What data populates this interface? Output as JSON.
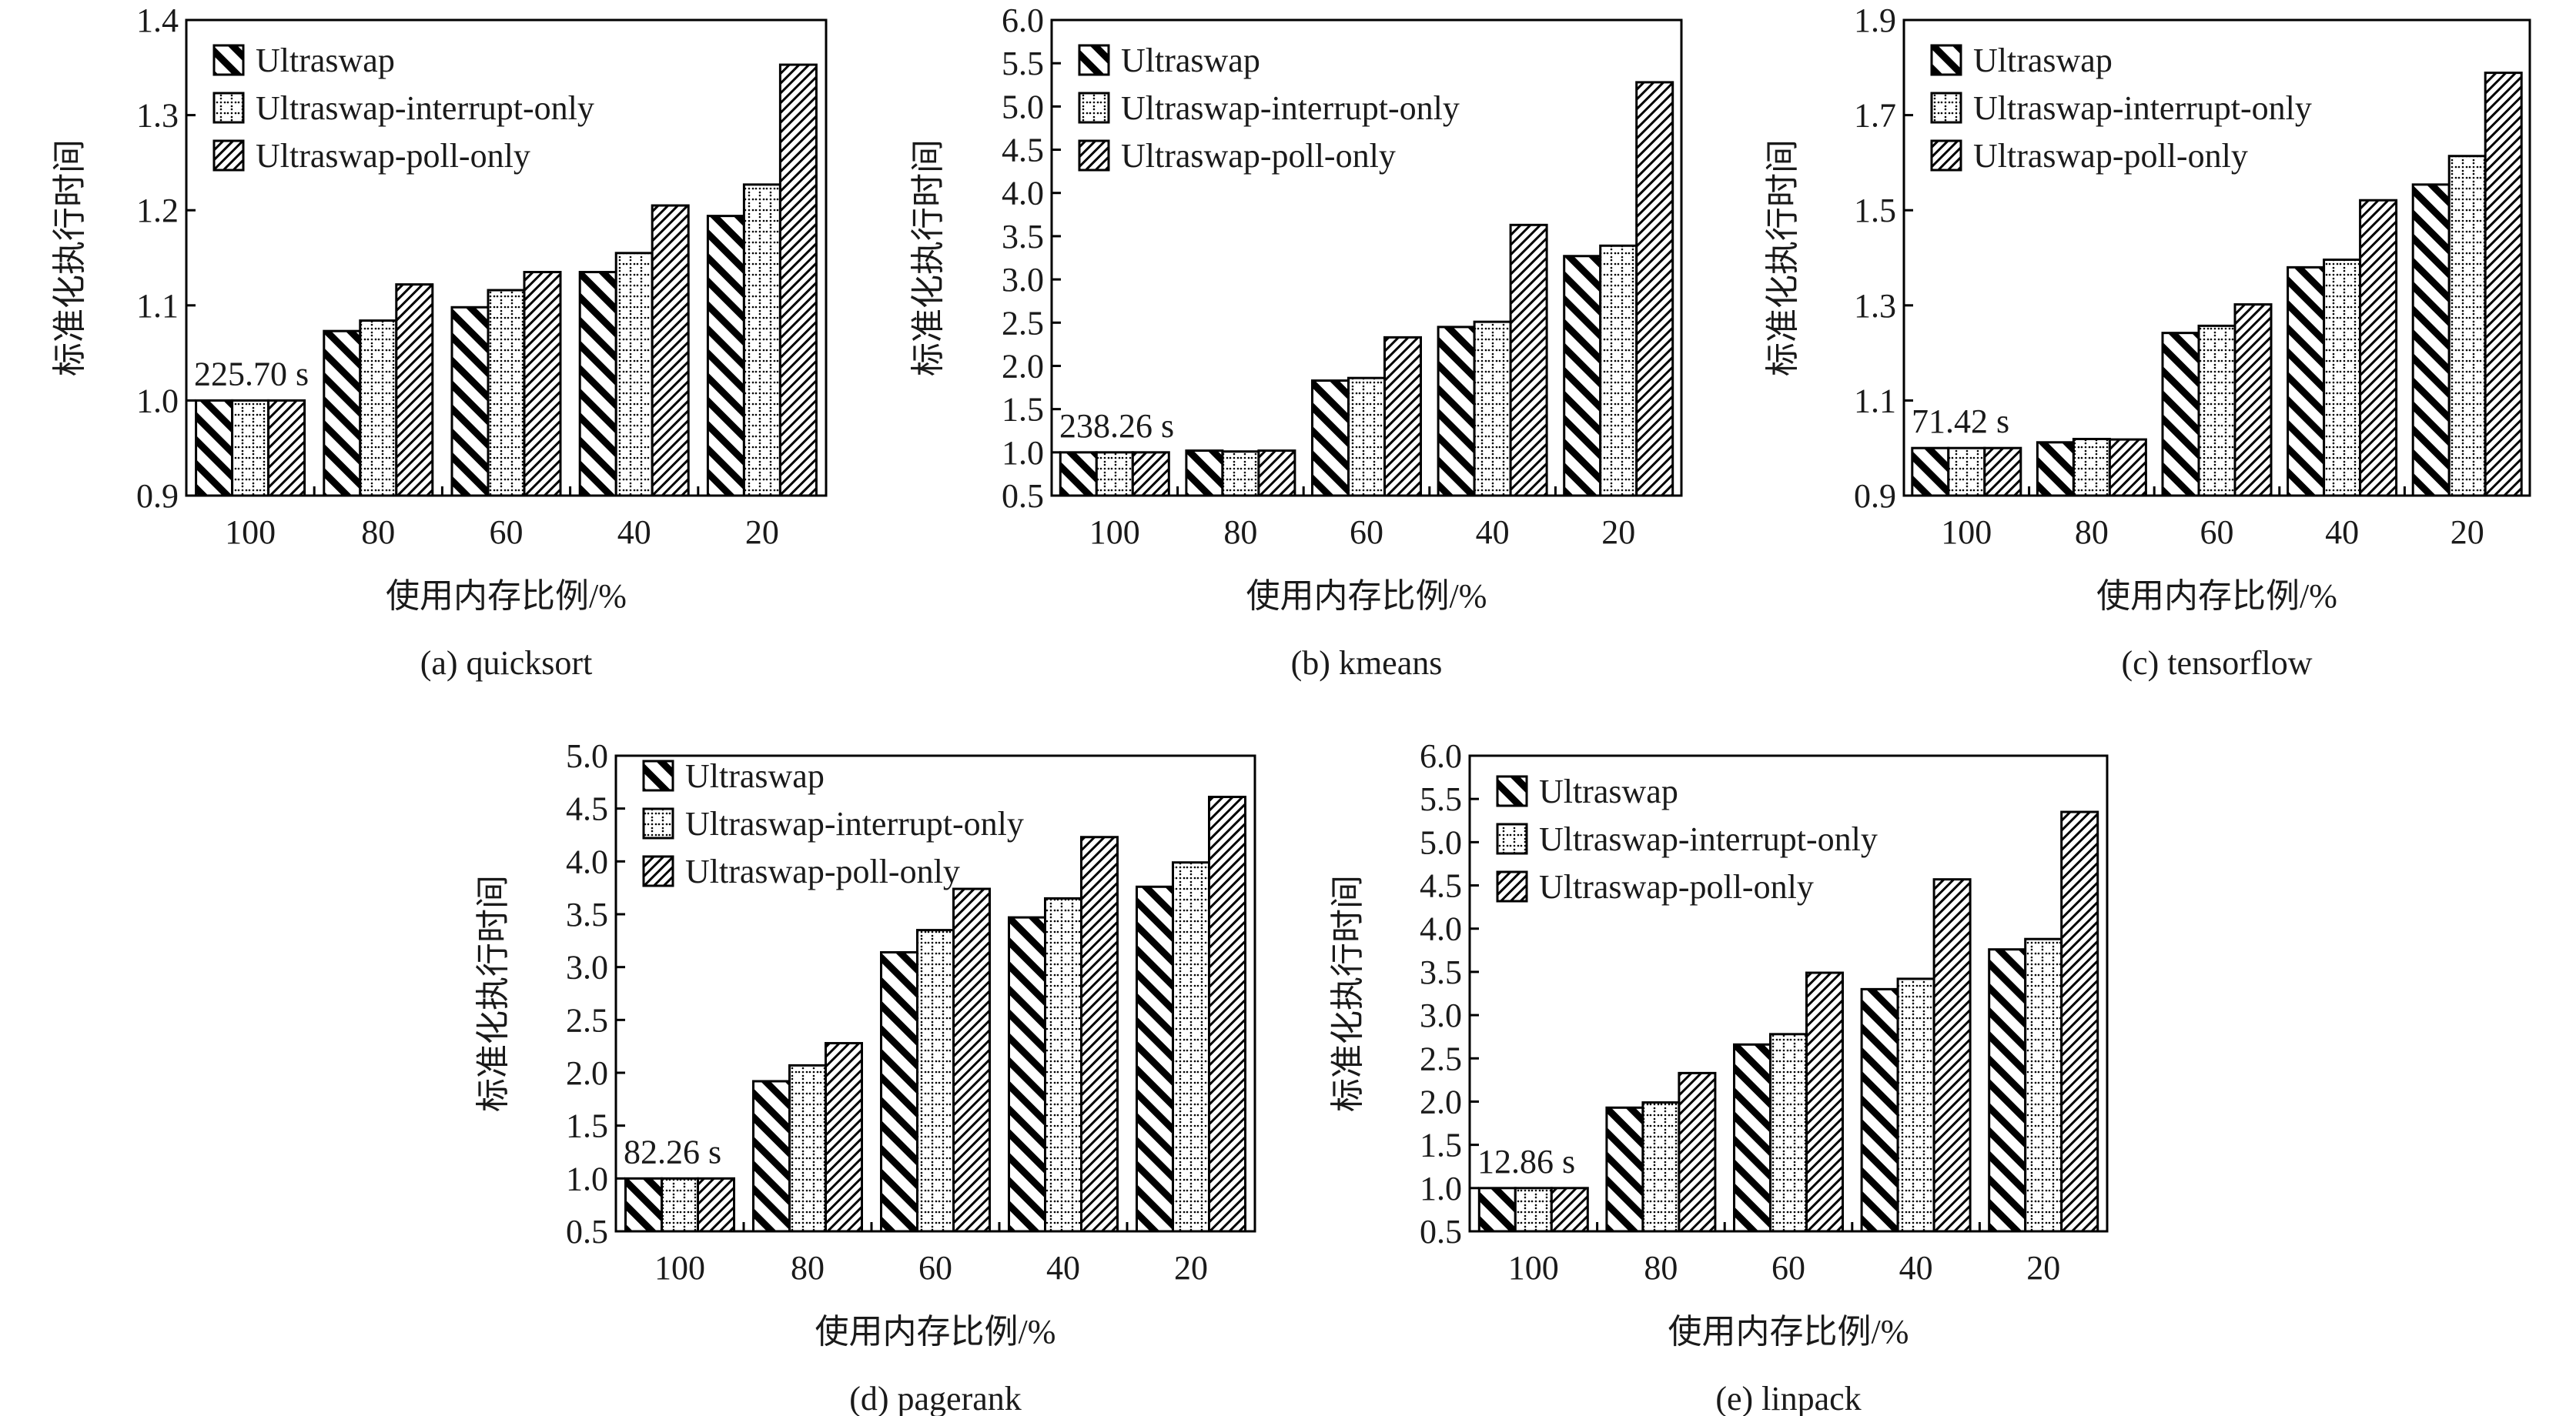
{
  "legend": [
    "Ultraswap",
    "Ultraswap-interrupt-only",
    "Ultraswap-poll-only"
  ],
  "colors": {
    "stroke": "#000000",
    "background": "#ffffff"
  },
  "chart_data": [
    {
      "type": "bar",
      "title": "(a)  quicksort",
      "xlabel": "使用内存比例/%",
      "ylabel": "标准化执行时间",
      "annotation": "225.70 s",
      "categories": [
        "100",
        "80",
        "60",
        "40",
        "20"
      ],
      "ylim": [
        0.9,
        1.4
      ],
      "yticks": [
        0.9,
        1.0,
        1.1,
        1.2,
        1.3,
        1.4
      ],
      "series": [
        {
          "name": "Ultraswap",
          "values": [
            1.0,
            1.073,
            1.098,
            1.135,
            1.194
          ]
        },
        {
          "name": "Ultraswap-interrupt-only",
          "values": [
            1.0,
            1.084,
            1.116,
            1.155,
            1.227
          ]
        },
        {
          "name": "Ultraswap-poll-only",
          "values": [
            1.0,
            1.122,
            1.135,
            1.205,
            1.353
          ]
        }
      ]
    },
    {
      "type": "bar",
      "title": "(b)  kmeans",
      "xlabel": "使用内存比例/%",
      "ylabel": "标准化执行时间",
      "annotation": "238.26 s",
      "categories": [
        "100",
        "80",
        "60",
        "40",
        "20"
      ],
      "ylim": [
        0.5,
        6.0
      ],
      "yticks": [
        0.5,
        1.0,
        1.5,
        2.0,
        2.5,
        3.0,
        3.5,
        4.0,
        4.5,
        5.0,
        5.5,
        6.0
      ],
      "series": [
        {
          "name": "Ultraswap",
          "values": [
            1.0,
            1.02,
            1.83,
            2.45,
            3.27
          ]
        },
        {
          "name": "Ultraswap-interrupt-only",
          "values": [
            1.0,
            1.01,
            1.86,
            2.51,
            3.39
          ]
        },
        {
          "name": "Ultraswap-poll-only",
          "values": [
            1.0,
            1.02,
            2.33,
            3.63,
            5.28
          ]
        }
      ]
    },
    {
      "type": "bar",
      "title": "(c)  tensorflow",
      "xlabel": "使用内存比例/%",
      "ylabel": "标准化执行时间",
      "annotation": "71.42 s",
      "categories": [
        "100",
        "80",
        "60",
        "40",
        "20"
      ],
      "ylim": [
        0.9,
        1.9
      ],
      "yticks": [
        0.9,
        1.1,
        1.3,
        1.5,
        1.7,
        1.9
      ],
      "series": [
        {
          "name": "Ultraswap",
          "values": [
            1.0,
            1.012,
            1.242,
            1.38,
            1.554
          ]
        },
        {
          "name": "Ultraswap-interrupt-only",
          "values": [
            1.0,
            1.019,
            1.257,
            1.396,
            1.614
          ]
        },
        {
          "name": "Ultraswap-poll-only",
          "values": [
            1.0,
            1.018,
            1.302,
            1.521,
            1.789
          ]
        }
      ]
    },
    {
      "type": "bar",
      "title": "(d)  pagerank",
      "xlabel": "使用内存比例/%",
      "ylabel": "标准化执行时间",
      "annotation": "82.26 s",
      "categories": [
        "100",
        "80",
        "60",
        "40",
        "20"
      ],
      "ylim": [
        0.5,
        5.0
      ],
      "yticks": [
        0.5,
        1.0,
        1.5,
        2.0,
        2.5,
        3.0,
        3.5,
        4.0,
        4.5,
        5.0
      ],
      "series": [
        {
          "name": "Ultraswap",
          "values": [
            1.0,
            1.92,
            3.14,
            3.47,
            3.76
          ]
        },
        {
          "name": "Ultraswap-interrupt-only",
          "values": [
            1.0,
            2.07,
            3.35,
            3.65,
            3.99
          ]
        },
        {
          "name": "Ultraswap-poll-only",
          "values": [
            1.0,
            2.28,
            3.74,
            4.23,
            4.61
          ]
        }
      ]
    },
    {
      "type": "bar",
      "title": "(e)  linpack",
      "xlabel": "使用内存比例/%",
      "ylabel": "标准化执行时间",
      "annotation": "12.86 s",
      "categories": [
        "100",
        "80",
        "60",
        "40",
        "20"
      ],
      "ylim": [
        0.5,
        6.0
      ],
      "yticks": [
        0.5,
        1.0,
        1.5,
        2.0,
        2.5,
        3.0,
        3.5,
        4.0,
        4.5,
        5.0,
        5.5,
        6.0
      ],
      "series": [
        {
          "name": "Ultraswap",
          "values": [
            1.0,
            1.93,
            2.66,
            3.3,
            3.76
          ]
        },
        {
          "name": "Ultraswap-interrupt-only",
          "values": [
            1.0,
            1.99,
            2.78,
            3.42,
            3.88
          ]
        },
        {
          "name": "Ultraswap-poll-only",
          "values": [
            1.0,
            2.33,
            3.49,
            4.57,
            5.35
          ]
        }
      ]
    }
  ]
}
